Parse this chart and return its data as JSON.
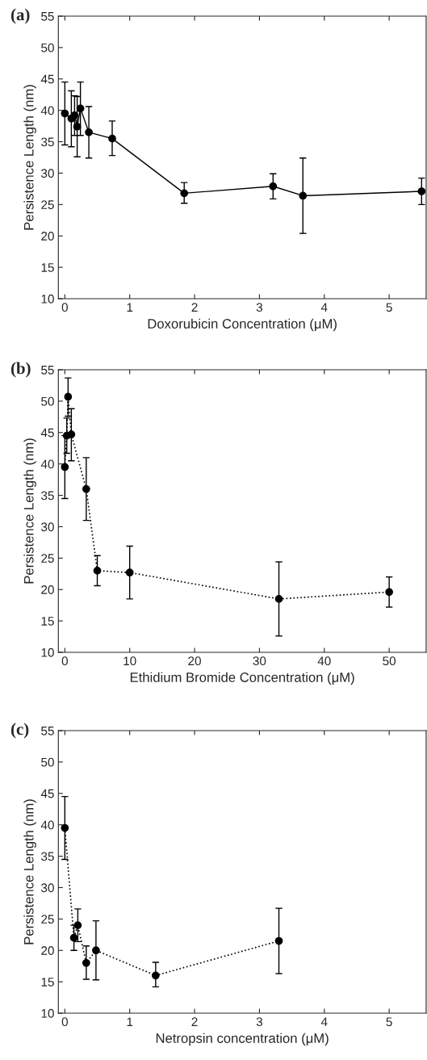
{
  "chart_data": [
    {
      "type": "line",
      "xlabel": "Doxorubicin Concentration (μM)",
      "ylabel": "Persistence Length (nm)",
      "annotations": [
        "(a)"
      ],
      "line_style": "solid",
      "marker": "circle",
      "xlim": [
        -0.1,
        5.57
      ],
      "xticks": [
        0,
        1,
        2,
        3,
        4,
        5
      ],
      "ylim": [
        10,
        55
      ],
      "yticks": [
        10,
        15,
        20,
        25,
        30,
        35,
        40,
        45,
        50,
        55
      ],
      "series": [
        {
          "color": "#000000",
          "x": [
            0,
            0.1,
            0.15,
            0.19,
            0.24,
            0.37,
            0.73,
            1.84,
            3.21,
            3.67,
            5.5
          ],
          "values": [
            39.5,
            38.7,
            39.2,
            37.4,
            40.3,
            36.5,
            35.5,
            26.8,
            27.9,
            26.4,
            27.1
          ],
          "errors": [
            [
              34.5,
              44.5
            ],
            [
              34.2,
              43.1
            ],
            [
              36.0,
              42.3
            ],
            [
              32.6,
              42.2
            ],
            [
              36.0,
              44.5
            ],
            [
              32.4,
              40.6
            ],
            [
              32.8,
              38.3
            ],
            [
              25.2,
              28.5
            ],
            [
              25.9,
              29.9
            ],
            [
              20.4,
              32.4
            ],
            [
              25.0,
              29.2
            ]
          ]
        }
      ]
    },
    {
      "type": "line",
      "xlabel": "Ethidium Bromide Concentration (μM)",
      "ylabel": "Persistence Length (nm)",
      "annotations": [
        "(b)"
      ],
      "line_style": "dotted",
      "marker": "circle",
      "xlim": [
        -1.0,
        55.7
      ],
      "xticks": [
        0,
        10,
        20,
        30,
        40,
        50
      ],
      "ylim": [
        10,
        55
      ],
      "yticks": [
        10,
        15,
        20,
        25,
        30,
        35,
        40,
        45,
        50,
        55
      ],
      "series": [
        {
          "color": "#000000",
          "x": [
            0,
            0.3,
            0.5,
            1,
            3.3,
            5,
            10,
            33,
            50
          ],
          "values": [
            39.5,
            44.5,
            50.7,
            44.7,
            36,
            23,
            22.7,
            18.5,
            19.6
          ],
          "errors": [
            [
              34.5,
              44.5
            ],
            [
              41.7,
              47.3
            ],
            [
              47.6,
              53.7
            ],
            [
              40.5,
              48.8
            ],
            [
              31,
              41
            ],
            [
              20.6,
              25.4
            ],
            [
              18.5,
              26.9
            ],
            [
              12.6,
              24.4
            ],
            [
              17.2,
              22
            ]
          ]
        }
      ]
    },
    {
      "type": "line",
      "xlabel": "Netropsin concentration (μM)",
      "ylabel": "Persistence Length (nm)",
      "annotations": [
        "(c)"
      ],
      "line_style": "dotted",
      "marker": "circle",
      "xlim": [
        -0.1,
        5.57
      ],
      "xticks": [
        0,
        1,
        2,
        3,
        4,
        5
      ],
      "ylim": [
        10,
        55
      ],
      "yticks": [
        10,
        15,
        20,
        25,
        30,
        35,
        40,
        45,
        50,
        55
      ],
      "series": [
        {
          "color": "#000000",
          "x": [
            0,
            0.14,
            0.2,
            0.33,
            0.48,
            1.4,
            3.3
          ],
          "values": [
            39.5,
            22,
            24,
            18,
            20,
            16,
            21.5
          ],
          "errors": [
            [
              34.5,
              44.5
            ],
            [
              20,
              24
            ],
            [
              21.4,
              26.6
            ],
            [
              15.4,
              20.7
            ],
            [
              15.3,
              24.7
            ],
            [
              14.2,
              18.1
            ],
            [
              16.3,
              26.7
            ]
          ]
        }
      ]
    }
  ]
}
